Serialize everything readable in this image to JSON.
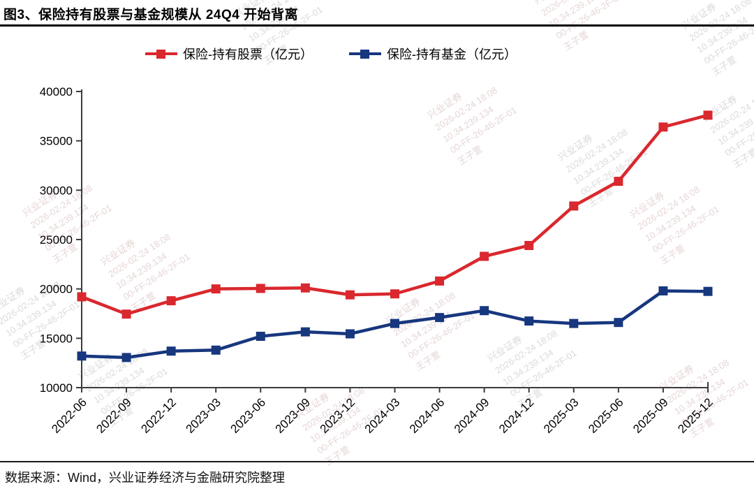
{
  "figure": {
    "title": "图3、保险持有股票与基金规模从 24Q4 开始背离",
    "source_note": "数据来源：Wind，兴业证券经济与金融研究院整理"
  },
  "watermark": {
    "lines": [
      "兴业证券",
      "2026-02-24 18:08",
      "10.34.239.134",
      "00-FF-26-46-2F-01",
      "王子萱"
    ]
  },
  "chart_data": {
    "type": "line",
    "title": "图3、保险持有股票与基金规模从 24Q4 开始背离",
    "categories": [
      "2022-06",
      "2022-09",
      "2022-12",
      "2023-03",
      "2023-06",
      "2023-09",
      "2023-12",
      "2024-03",
      "2024-06",
      "2024-09",
      "2024-12",
      "2025-03",
      "2025-06",
      "2025-09",
      "2025-12"
    ],
    "series": [
      {
        "name": "保险-持有股票（亿元）",
        "color": "#d9282e",
        "marker": "square",
        "values": [
          19200,
          17450,
          18800,
          20000,
          20050,
          20100,
          19400,
          19500,
          20800,
          23300,
          24400,
          28400,
          30900,
          36400,
          37600
        ]
      },
      {
        "name": "保险-持有基金（亿元）",
        "color": "#17377e",
        "marker": "square",
        "values": [
          13200,
          13050,
          13700,
          13800,
          15200,
          15650,
          15450,
          16500,
          17100,
          17800,
          16750,
          16500,
          16600,
          19800,
          19750
        ]
      }
    ],
    "xlabel": "",
    "ylabel": "",
    "ylim": [
      10000,
      40000
    ],
    "yticks": [
      10000,
      15000,
      20000,
      25000,
      30000,
      35000,
      40000
    ],
    "grid": false,
    "legend_position": "top",
    "x_tick_rotation": -45
  }
}
